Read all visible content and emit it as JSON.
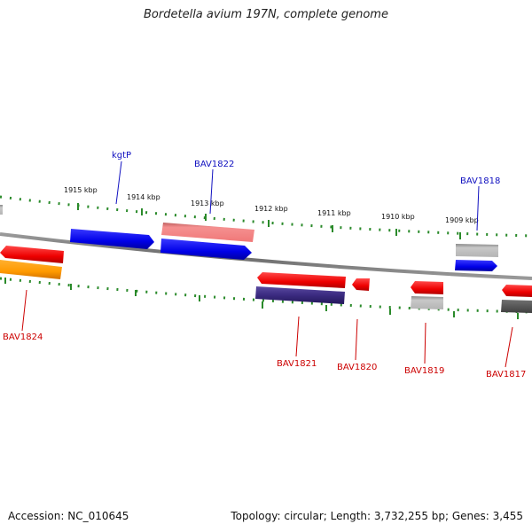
{
  "title": "Bordetella avium 197N, complete genome",
  "footer": {
    "accession": "Accession: NC_010645",
    "summary": "Topology: circular; Length: 3,732,255 bp; Genes: 3,455"
  },
  "colors": {
    "forward_label": "#1010c0",
    "reverse_label": "#cc0000",
    "backbone": "#808080",
    "tick": "#2a8a2a"
  },
  "tick_labels": [
    "1915 kbp",
    "1914 kbp",
    "1913 kbp",
    "1912 kbp",
    "1911 kbp",
    "1910 kbp",
    "1909 kbp"
  ],
  "forward_genes": [
    {
      "name": "kgtP",
      "label": "kgtP",
      "color": "#1010e0"
    },
    {
      "name": "BAV1822",
      "label": "BAV1822",
      "color": "#1010e0"
    },
    {
      "name": "BAV1818",
      "label": "BAV1818",
      "color": "#1010e0"
    }
  ],
  "reverse_genes": [
    {
      "name": "BAV1824",
      "label": "BAV1824",
      "color": "#ee1111"
    },
    {
      "name": "BAV1821",
      "label": "BAV1821",
      "color": "#ee1111"
    },
    {
      "name": "BAV1820",
      "label": "BAV1820",
      "color": "#ee1111"
    },
    {
      "name": "BAV1819",
      "label": "BAV1819",
      "color": "#ee1111"
    },
    {
      "name": "BAV1817",
      "label": "BAV1817",
      "color": "#ee1111"
    }
  ]
}
